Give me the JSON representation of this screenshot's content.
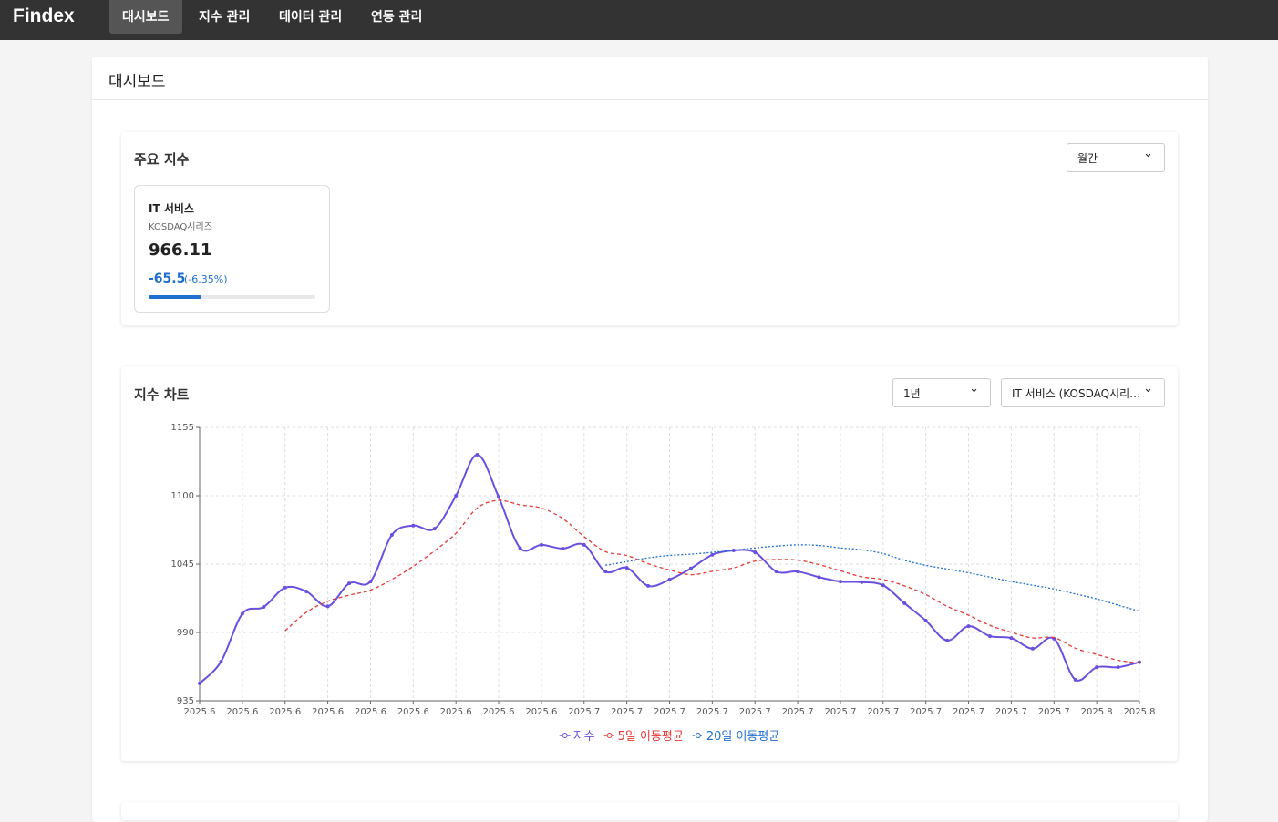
{
  "nav": {
    "logo": "Findex",
    "items": [
      "대시보드",
      "지수 관리",
      "데이터 관리",
      "연동 관리"
    ]
  },
  "page": {
    "title": "대시보드"
  },
  "summary": {
    "title": "주요 지수",
    "period": "월간",
    "cards": [
      {
        "name": "IT 서비스",
        "series": "KOSDAQ시리즈",
        "value": 966.11,
        "change": -65.5,
        "change_pct": "(-6.35%)"
      }
    ]
  },
  "chart_panel": {
    "title": "지수 차트",
    "range": "1년",
    "index_select": "IT 서비스 (KOSDAQ시리…"
  },
  "chart_data": {
    "type": "line",
    "categories": [
      "2025.6",
      null,
      "2025.6",
      null,
      "2025.6",
      null,
      "2025.6",
      null,
      "2025.6",
      null,
      "2025.6",
      null,
      "2025.6",
      null,
      "2025.6",
      null,
      "2025.6",
      null,
      "2025.7",
      null,
      "2025.7",
      null,
      "2025.7",
      null,
      "2025.7",
      null,
      "2025.7",
      null,
      "2025.7",
      null,
      "2025.7",
      null,
      "2025.7",
      null,
      "2025.7",
      null,
      "2025.7",
      null,
      "2025.7",
      null,
      "2025.7",
      null,
      "2025.8",
      null,
      "2025.8"
    ],
    "series": [
      {
        "name": "지수",
        "color": "#6a4fe0",
        "style": "solid",
        "markers": true,
        "values": [
          949,
          966.5,
          1005,
          1010.5,
          1026,
          1023,
          1011,
          1029.5,
          1031,
          1068.5,
          1076,
          1073.5,
          1100,
          1133,
          1099,
          1058,
          1060.5,
          1057.5,
          1060.5,
          1039,
          1042,
          1027.5,
          1032.5,
          1041.5,
          1052.5,
          1056,
          1054.5,
          1039,
          1039,
          1034.5,
          1031,
          1030.5,
          1028,
          1013.5,
          999.5,
          983.5,
          995,
          987,
          985.5,
          977,
          985,
          952,
          962,
          962,
          966.11
        ]
      },
      {
        "name": "5일 이동평균",
        "color": "#e53935",
        "style": "dashed",
        "markers": false,
        "values": [
          null,
          null,
          null,
          null,
          991.4,
          1006.2,
          1015.1,
          1020,
          1024.1,
          1032.6,
          1043.2,
          1055.7,
          1069.8,
          1090.2,
          1096.3,
          1092.7,
          1090.1,
          1081.6,
          1067.1,
          1055.1,
          1051.9,
          1045.3,
          1040.3,
          1036.5,
          1039.2,
          1042,
          1047.4,
          1048.7,
          1048.2,
          1044.6,
          1039.6,
          1034.8,
          1032.6,
          1027.5,
          1020.5,
          1011,
          1003.9,
          995.7,
          990.1,
          985.6,
          985.9,
          977.3,
          972.3,
          967.6,
          965.4
        ]
      },
      {
        "name": "20일 이동평균",
        "color": "#1e6fd0",
        "style": "dotted",
        "markers": false,
        "values": [
          null,
          null,
          null,
          null,
          null,
          null,
          null,
          null,
          null,
          null,
          null,
          null,
          null,
          null,
          null,
          null,
          null,
          null,
          null,
          1044,
          1047,
          1050,
          1052,
          1053,
          1054.5,
          1056,
          1058,
          1059.5,
          1060.5,
          1060,
          1058,
          1056.5,
          1053.5,
          1048,
          1044,
          1041,
          1038,
          1034.5,
          1031,
          1028,
          1025,
          1021,
          1017,
          1012,
          1007
        ]
      }
    ],
    "ylim": [
      935,
      1155
    ],
    "yticks": [
      935,
      990,
      1045,
      1100,
      1155
    ],
    "grid": true
  }
}
